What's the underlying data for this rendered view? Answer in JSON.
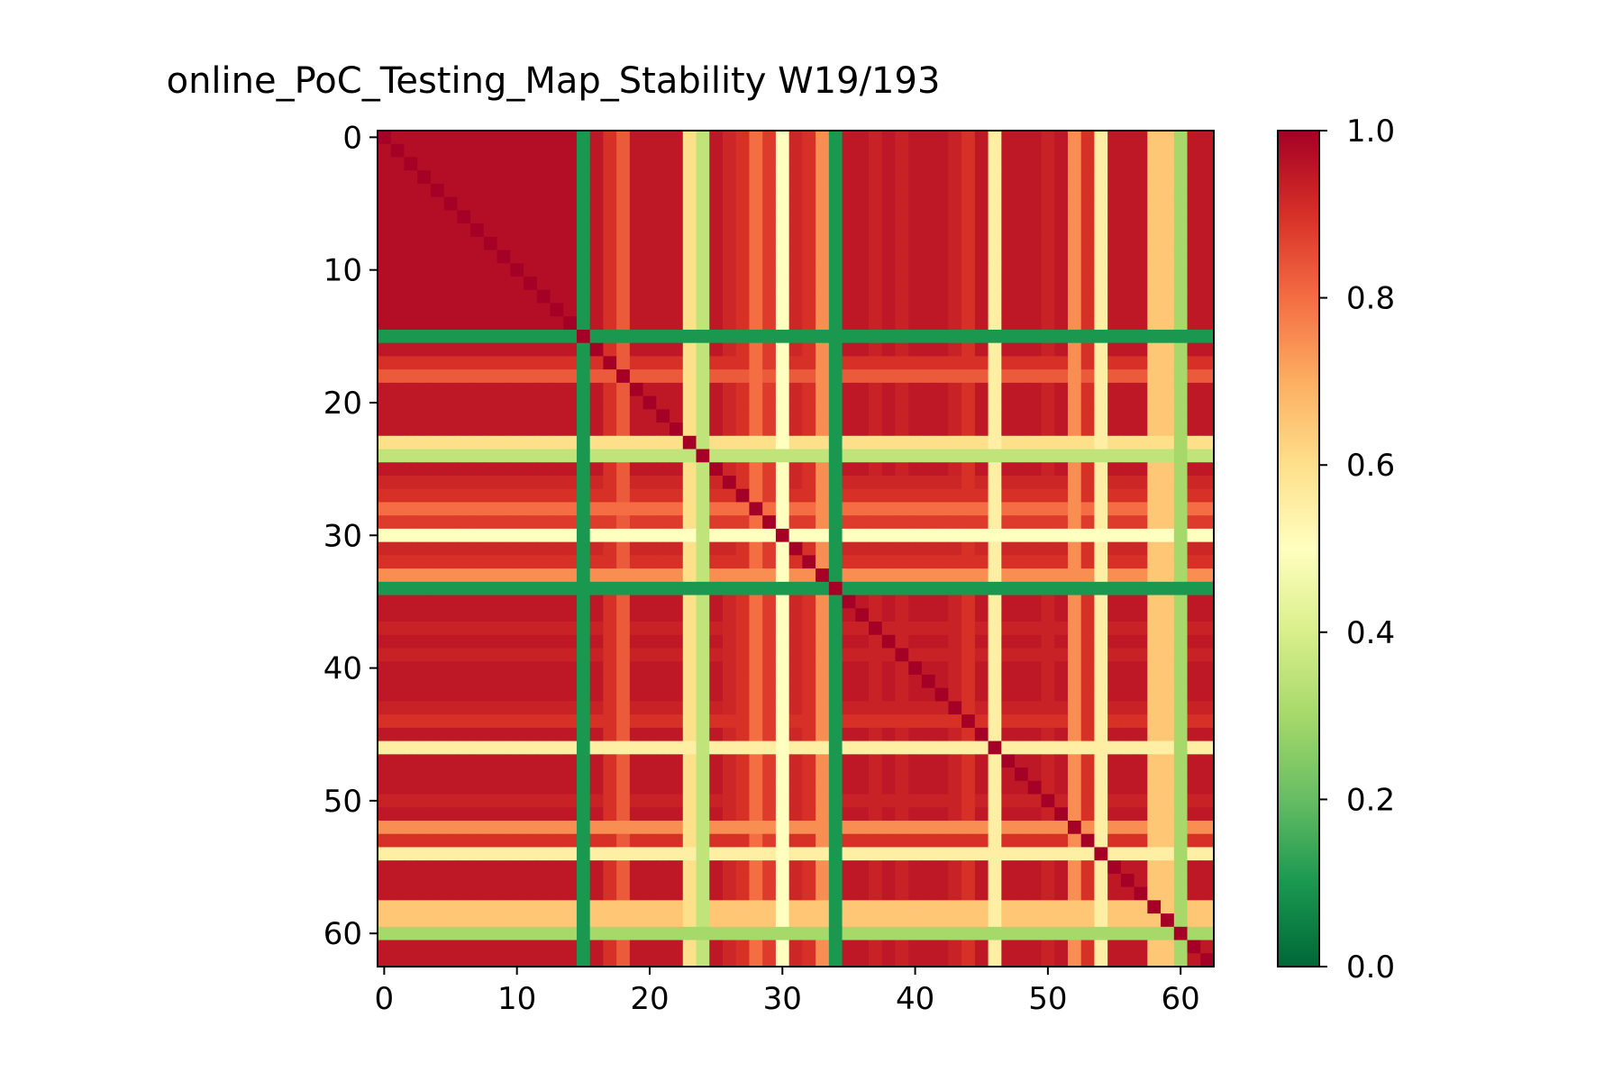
{
  "chart_data": {
    "type": "heatmap",
    "title": "online_PoC_Testing_Map_Stability W19/193",
    "xlabel": "",
    "ylabel": "",
    "n": 63,
    "colormap": "RdYlGn_r",
    "vmin": 0.0,
    "vmax": 1.0,
    "xticks": [
      0,
      10,
      20,
      30,
      40,
      50,
      60
    ],
    "yticks": [
      0,
      10,
      20,
      30,
      40,
      50,
      60
    ],
    "colorbar_ticks": [
      "0.0",
      "0.2",
      "0.4",
      "0.6",
      "0.8",
      "1.0"
    ],
    "row_levels": [
      0.97,
      0.97,
      0.97,
      0.97,
      0.97,
      0.97,
      0.97,
      0.97,
      0.97,
      0.97,
      0.97,
      0.97,
      0.97,
      0.97,
      0.97,
      0.1,
      0.95,
      0.9,
      0.83,
      0.95,
      0.95,
      0.95,
      0.95,
      0.6,
      0.35,
      0.95,
      0.92,
      0.9,
      0.8,
      0.88,
      0.5,
      0.92,
      0.9,
      0.75,
      0.1,
      0.95,
      0.95,
      0.93,
      0.95,
      0.93,
      0.95,
      0.95,
      0.95,
      0.93,
      0.9,
      0.95,
      0.55,
      0.95,
      0.95,
      0.95,
      0.93,
      0.95,
      0.75,
      0.9,
      0.55,
      0.95,
      0.95,
      0.95,
      0.65,
      0.65,
      0.3,
      0.95,
      0.95
    ],
    "diagonal_value": 1.0
  }
}
